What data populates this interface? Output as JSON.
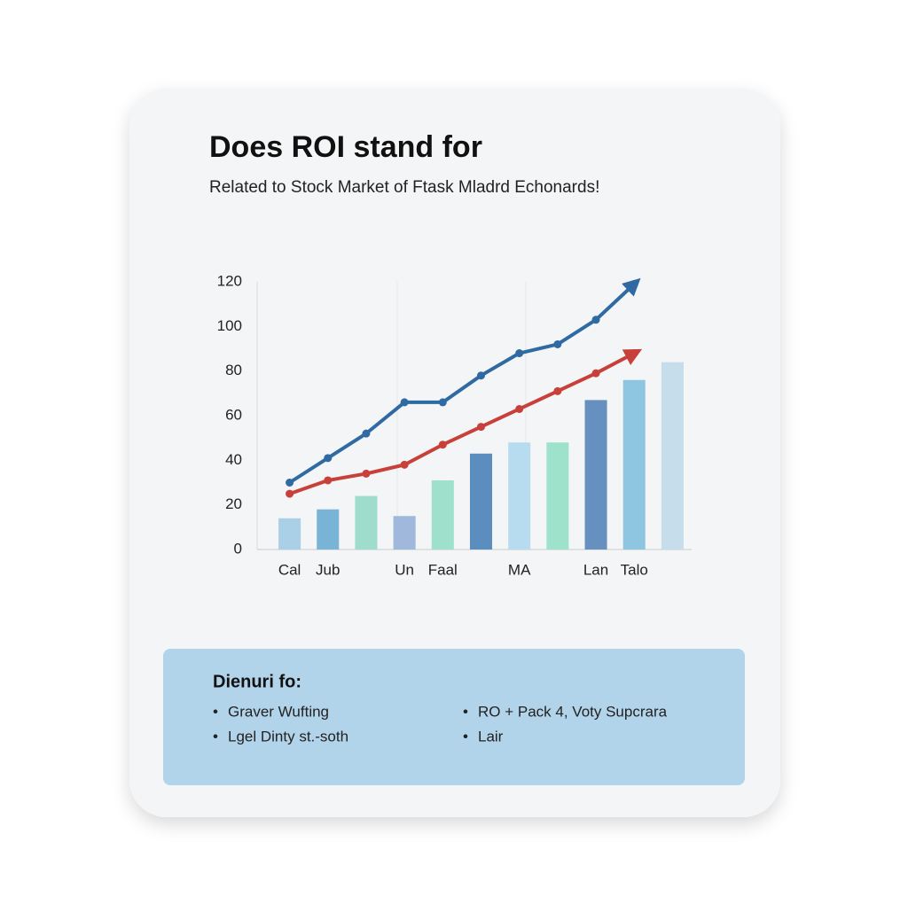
{
  "chart_data": {
    "type": "bar",
    "title": "Does ROI stand for",
    "subtitle": "Related to Stock Market of Ftask Mladrd Echonards!",
    "categories": [
      "Cal",
      "Jub",
      null,
      "Un",
      "Faal",
      null,
      "MA",
      null,
      "Lan",
      "Talo",
      null
    ],
    "values": [
      14,
      18,
      24,
      15,
      31,
      43,
      48,
      48,
      67,
      76,
      84
    ],
    "colors": [
      "#a9d0e6",
      "#79b3d6",
      "#9edccb",
      "#9fb8dc",
      "#9fe0cc",
      "#5b8dbf",
      "#b8dcef",
      "#9ee2cc",
      "#6590c0",
      "#8ec6e2",
      "#c6deec"
    ],
    "lines": [
      {
        "color": "#2f6aa3",
        "values": [
          30,
          41,
          52,
          66,
          66,
          78,
          88,
          92,
          103,
          119,
          null
        ]
      },
      {
        "color": "#c8403a",
        "values": [
          25,
          31,
          34,
          38,
          47,
          55,
          63,
          71,
          79,
          88,
          null
        ]
      }
    ],
    "ylim": [
      0,
      120
    ],
    "yticks": [
      0,
      20,
      40,
      60,
      80,
      100,
      120
    ],
    "grid": false,
    "legend_box": {
      "title": "Dienuri fo:",
      "items": [
        "Graver Wufting",
        "Lgel Dinty st.-soth",
        "RO + Pack 4, Voty Supcrara",
        "Lair"
      ]
    }
  }
}
